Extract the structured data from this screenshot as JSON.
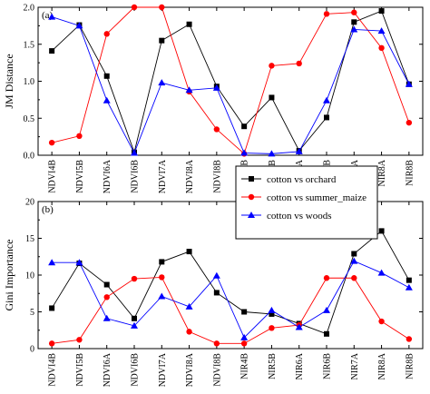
{
  "chart_data": [
    {
      "type": "line",
      "panel_label": "(a)",
      "ylabel": "JM Distance",
      "xlabel": "",
      "ylim": [
        0,
        2.0
      ],
      "yticks": [
        0.0,
        0.5,
        1.0,
        1.5,
        2.0
      ],
      "ytick_labels": [
        "0.0",
        "0.5",
        "1.0",
        "1.5",
        "2.0"
      ],
      "categories": [
        "NDVI4B",
        "NDVI5B",
        "NDVI6A",
        "NDVI6B",
        "NDVI7A",
        "NDVI8A",
        "NDVI8B",
        "NIR4B",
        "NIR5B",
        "NIR6A",
        "NIR6B",
        "NIR7A",
        "NIR8A",
        "NIR8B"
      ],
      "grid": false,
      "series": [
        {
          "name": "cotton vs orchard",
          "color": "#000000",
          "marker": "square",
          "values": [
            1.41,
            1.76,
            1.07,
            0.04,
            1.55,
            1.77,
            0.93,
            0.39,
            0.78,
            0.06,
            0.51,
            1.8,
            1.95,
            0.96
          ]
        },
        {
          "name": "cotton vs summer_maize",
          "color": "#ff0000",
          "marker": "circle",
          "values": [
            0.17,
            0.26,
            1.64,
            2.0,
            2.0,
            0.86,
            0.35,
            0.02,
            1.21,
            1.24,
            1.91,
            1.93,
            1.45,
            0.44
          ]
        },
        {
          "name": "cotton vs woods",
          "color": "#0000ff",
          "marker": "triangle",
          "values": [
            1.87,
            1.75,
            0.74,
            0.03,
            0.98,
            0.88,
            0.91,
            0.03,
            0.02,
            0.05,
            0.74,
            1.7,
            1.68,
            0.96
          ]
        }
      ]
    },
    {
      "type": "line",
      "panel_label": "(b)",
      "ylabel": "Gini Importance",
      "xlabel": "",
      "ylim": [
        0,
        20
      ],
      "yticks": [
        0,
        5,
        10,
        15,
        20
      ],
      "ytick_labels": [
        "0",
        "5",
        "10",
        "15",
        "20"
      ],
      "categories": [
        "NDVI4B",
        "NDVI5B",
        "NDVI6A",
        "NDVI6B",
        "NDVI7A",
        "NDVI8A",
        "NDVI8B",
        "NIR4B",
        "NIR5B",
        "NIR6A",
        "NIR6B",
        "NIR7A",
        "NIR8A",
        "NIR8B"
      ],
      "grid": false,
      "legend": {
        "placement": "top-center",
        "entries": [
          "cotton vs orchard",
          "cotton vs summer_maize",
          "cotton vs woods"
        ]
      },
      "series": [
        {
          "name": "cotton vs orchard",
          "color": "#000000",
          "marker": "square",
          "values": [
            5.5,
            11.6,
            8.7,
            4.1,
            11.8,
            13.2,
            7.6,
            5.0,
            4.7,
            3.4,
            2.0,
            12.9,
            16.0,
            9.3
          ]
        },
        {
          "name": "cotton vs summer_maize",
          "color": "#ff0000",
          "marker": "circle",
          "values": [
            0.7,
            1.2,
            7.0,
            9.5,
            9.7,
            2.3,
            0.7,
            0.7,
            2.8,
            3.2,
            9.6,
            9.6,
            3.7,
            1.3
          ]
        },
        {
          "name": "cotton vs woods",
          "color": "#0000ff",
          "marker": "triangle",
          "values": [
            11.7,
            11.7,
            4.1,
            3.1,
            7.1,
            5.7,
            9.9,
            1.5,
            5.2,
            2.9,
            5.2,
            11.9,
            10.3,
            8.3
          ]
        }
      ]
    }
  ]
}
